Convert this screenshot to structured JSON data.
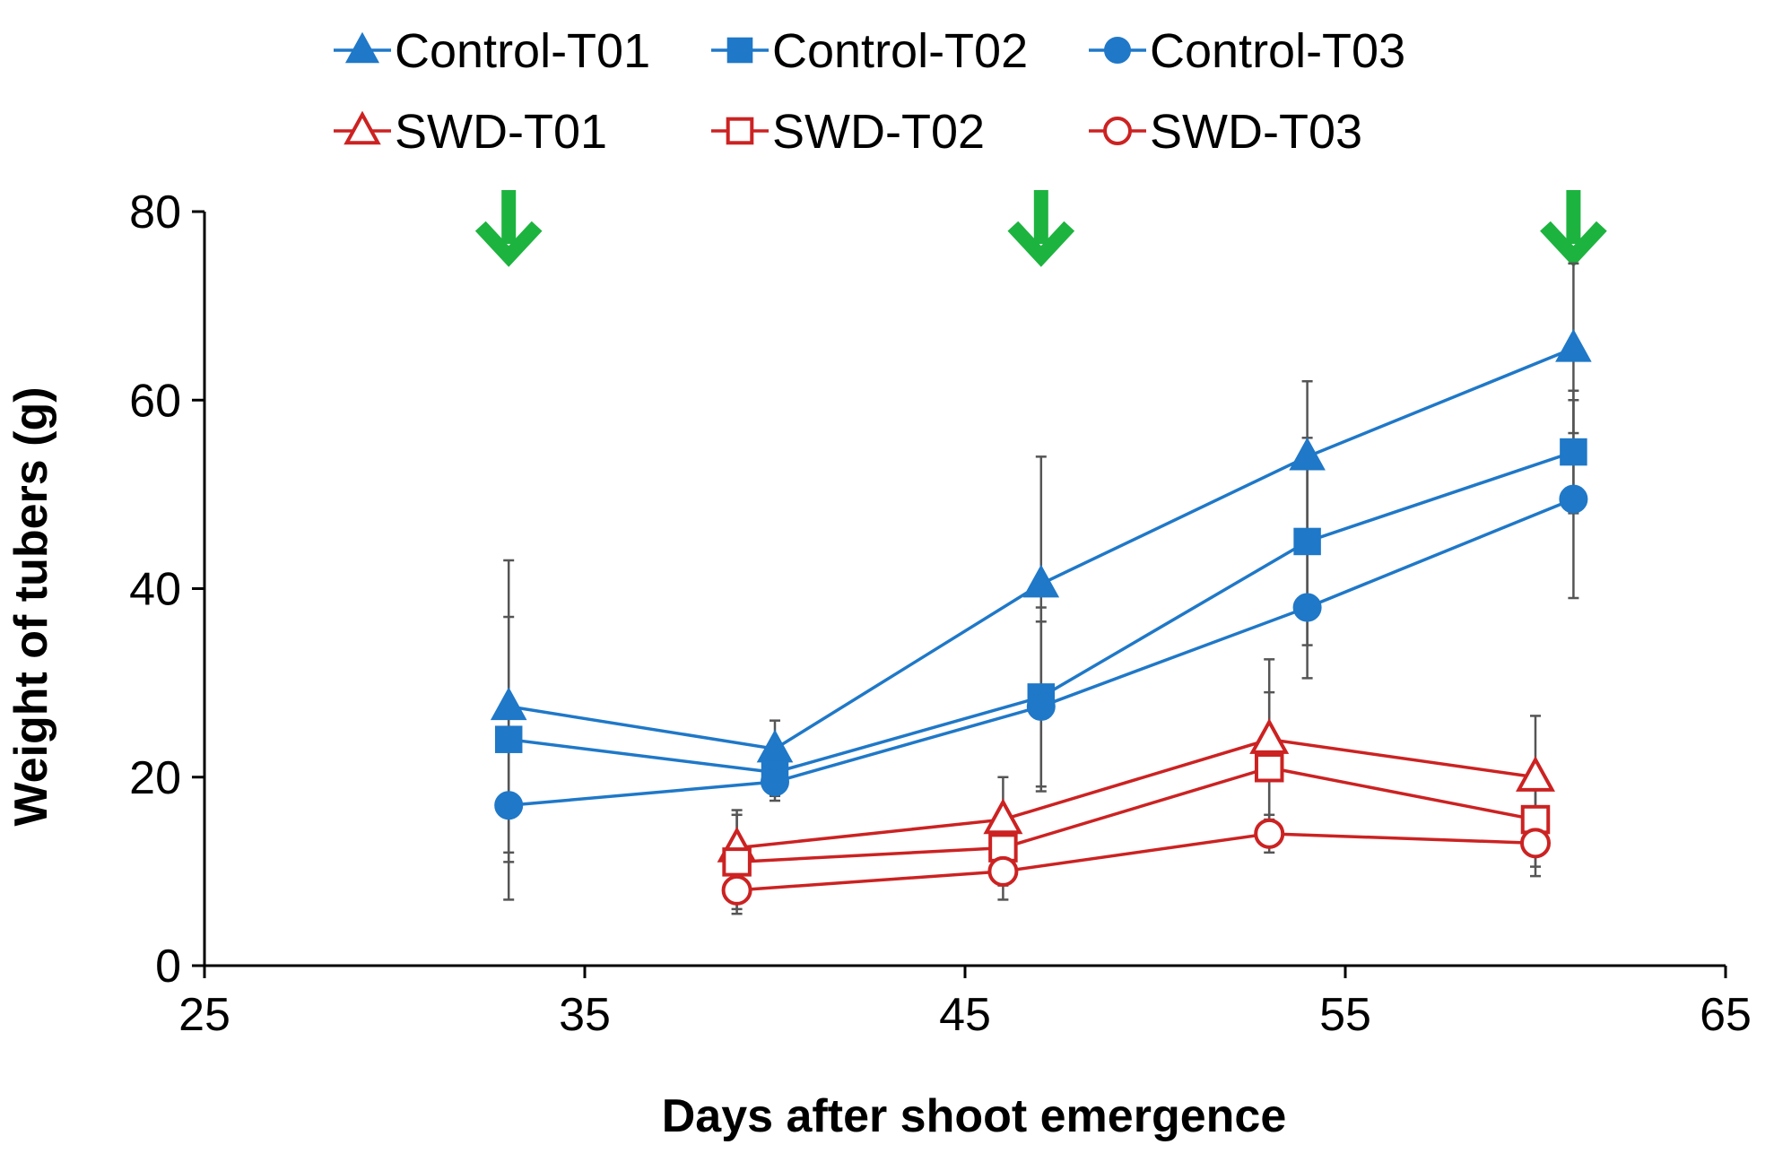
{
  "chart_data": {
    "type": "line",
    "xlabel": "Days after shoot emergence",
    "ylabel": "Weight of tubers (g)",
    "xlim": [
      25,
      65
    ],
    "ylim": [
      0,
      80
    ],
    "xticks": [
      25,
      35,
      45,
      55,
      65
    ],
    "yticks": [
      0,
      20,
      40,
      60,
      80
    ],
    "grid": false,
    "legend_position": "top",
    "series": [
      {
        "name": "Control-T01",
        "color": "#1f78c8",
        "marker": "triangle",
        "filled": true,
        "x": [
          33,
          40,
          47,
          54,
          61
        ],
        "y": [
          27.5,
          23,
          40.5,
          54,
          65.5
        ],
        "err": [
          15.5,
          3,
          13.5,
          8,
          9
        ]
      },
      {
        "name": "Control-T02",
        "color": "#1f78c8",
        "marker": "square",
        "filled": true,
        "x": [
          33,
          40,
          47,
          54,
          61
        ],
        "y": [
          24,
          20.5,
          28.5,
          45,
          54.5
        ],
        "err": [
          13,
          2.5,
          9.5,
          11,
          6.5
        ]
      },
      {
        "name": "Control-T03",
        "color": "#1f78c8",
        "marker": "circle",
        "filled": true,
        "x": [
          33,
          40,
          47,
          54,
          61
        ],
        "y": [
          17,
          19.5,
          27.5,
          38,
          49.5
        ],
        "err": [
          10,
          2,
          9,
          7.5,
          10.5
        ]
      },
      {
        "name": "SWD-T01",
        "color": "#cc2222",
        "marker": "triangle",
        "filled": false,
        "x": [
          39,
          46,
          53,
          60
        ],
        "y": [
          12.5,
          15.5,
          24,
          20
        ],
        "err": [
          4,
          4.5,
          8.5,
          6.5
        ]
      },
      {
        "name": "SWD-T02",
        "color": "#cc2222",
        "marker": "square",
        "filled": false,
        "x": [
          39,
          46,
          53,
          60
        ],
        "y": [
          11,
          12.5,
          21,
          15.5
        ],
        "err": [
          5,
          4,
          8,
          5
        ]
      },
      {
        "name": "SWD-T03",
        "color": "#cc2222",
        "marker": "circle",
        "filled": false,
        "x": [
          39,
          46,
          53,
          60
        ],
        "y": [
          8,
          10,
          14,
          13
        ],
        "err": [
          2.5,
          3,
          2,
          3.5
        ]
      }
    ],
    "annotations": [
      {
        "type": "arrow",
        "direction": "down",
        "color": "#1db33f",
        "x": 33,
        "y": 77
      },
      {
        "type": "arrow",
        "direction": "down",
        "color": "#1db33f",
        "x": 47,
        "y": 77
      },
      {
        "type": "arrow",
        "direction": "down",
        "color": "#1db33f",
        "x": 61,
        "y": 77
      }
    ]
  }
}
